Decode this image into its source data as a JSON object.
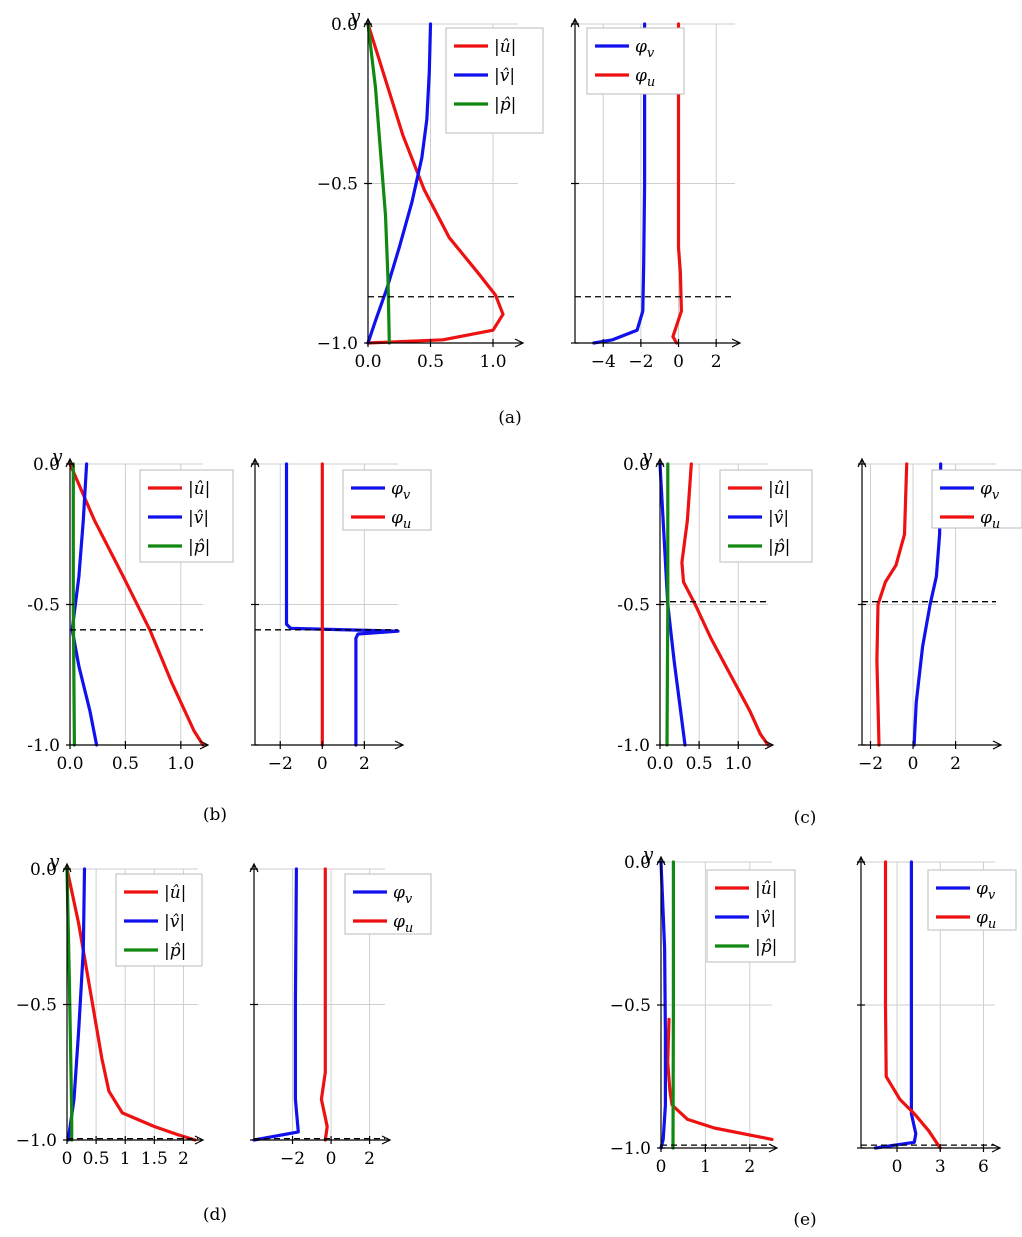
{
  "colors": {
    "u": "#ee1111",
    "v": "#1111ee",
    "p": "#118811"
  },
  "chart_data": [
    {
      "type": "line",
      "panel": "amp",
      "caption": "(a)",
      "ylabel": "y",
      "xlim": [
        0,
        1.2
      ],
      "ylim": [
        -1,
        0
      ],
      "xticks": [
        0,
        0.5,
        1
      ],
      "xticklabels": [
        "0.0",
        "0.5",
        "1.0"
      ],
      "yticks": [
        0,
        -0.5,
        -1
      ],
      "yticklabels": [
        "0.0",
        "−0.5",
        "−1.0"
      ],
      "dashed_y": -0.855,
      "legend": [
        "|û|",
        "|v̂|",
        "|p̂|"
      ],
      "series": [
        {
          "name": "|û|",
          "key": "u",
          "points": [
            [
              0,
              0
            ],
            [
              0.12,
              -0.15
            ],
            [
              0.28,
              -0.35
            ],
            [
              0.45,
              -0.52
            ],
            [
              0.65,
              -0.67
            ],
            [
              0.88,
              -0.78
            ],
            [
              1.02,
              -0.85
            ],
            [
              1.08,
              -0.91
            ],
            [
              1.0,
              -0.96
            ],
            [
              0.6,
              -0.99
            ],
            [
              0,
              -1
            ]
          ]
        },
        {
          "name": "|v̂|",
          "key": "v",
          "points": [
            [
              0.5,
              0
            ],
            [
              0.49,
              -0.15
            ],
            [
              0.47,
              -0.3
            ],
            [
              0.43,
              -0.42
            ],
            [
              0.35,
              -0.56
            ],
            [
              0.25,
              -0.7
            ],
            [
              0.15,
              -0.83
            ],
            [
              0.06,
              -0.93
            ],
            [
              0,
              -1
            ]
          ]
        },
        {
          "name": "|p̂|",
          "key": "p",
          "points": [
            [
              0,
              0
            ],
            [
              0.06,
              -0.2
            ],
            [
              0.1,
              -0.4
            ],
            [
              0.14,
              -0.6
            ],
            [
              0.16,
              -0.8
            ],
            [
              0.17,
              -1
            ]
          ]
        }
      ]
    },
    {
      "type": "line",
      "panel": "phase",
      "xlim": [
        -5.5,
        3
      ],
      "ylim": [
        -1,
        0
      ],
      "xticks": [
        -4,
        -2,
        0,
        2
      ],
      "xticklabels": [
        "−4",
        "−2",
        "0",
        "2"
      ],
      "yticks": [
        0,
        -0.5,
        -1
      ],
      "dashed_y": -0.855,
      "legend": [
        "φv",
        "φu"
      ],
      "series": [
        {
          "name": "φv",
          "key": "v",
          "points": [
            [
              -1.8,
              0
            ],
            [
              -1.8,
              -0.5
            ],
            [
              -1.85,
              -0.75
            ],
            [
              -1.9,
              -0.9
            ],
            [
              -2.2,
              -0.96
            ],
            [
              -3.5,
              -0.99
            ],
            [
              -4.5,
              -1
            ]
          ]
        },
        {
          "name": "φu",
          "key": "u",
          "points": [
            [
              0,
              0
            ],
            [
              0,
              -0.7
            ],
            [
              0.1,
              -0.78
            ],
            [
              0.15,
              -0.9
            ],
            [
              -0.3,
              -0.98
            ],
            [
              -0.1,
              -1
            ]
          ]
        }
      ]
    },
    {
      "type": "line",
      "panel": "amp",
      "caption": "(b)",
      "ylabel": "y",
      "xlim": [
        0,
        1.2
      ],
      "ylim": [
        -1,
        0
      ],
      "xticks": [
        0,
        0.5,
        1
      ],
      "xticklabels": [
        "0.0",
        "0.5",
        "1.0"
      ],
      "yticks": [
        0,
        -0.5,
        -1
      ],
      "yticklabels": [
        "0.0",
        "-0.5",
        "-1.0"
      ],
      "dashed_y": -0.59,
      "legend": [
        "|û|",
        "|v̂|",
        "|p̂|"
      ],
      "series": [
        {
          "name": "|û|",
          "key": "u",
          "points": [
            [
              0,
              0
            ],
            [
              0.22,
              -0.2
            ],
            [
              0.48,
              -0.4
            ],
            [
              0.72,
              -0.59
            ],
            [
              0.92,
              -0.78
            ],
            [
              1.12,
              -0.95
            ],
            [
              1.2,
              -1
            ]
          ]
        },
        {
          "name": "|v̂|",
          "key": "v",
          "points": [
            [
              0.15,
              0
            ],
            [
              0.12,
              -0.2
            ],
            [
              0.08,
              -0.4
            ],
            [
              0.02,
              -0.59
            ],
            [
              0.08,
              -0.72
            ],
            [
              0.18,
              -0.88
            ],
            [
              0.24,
              -1
            ]
          ]
        },
        {
          "name": "|p̂|",
          "key": "p",
          "points": [
            [
              0.03,
              0
            ],
            [
              0.03,
              -0.5
            ],
            [
              0.04,
              -1
            ]
          ]
        }
      ]
    },
    {
      "type": "line",
      "panel": "phase",
      "xlim": [
        -3.2,
        3.6
      ],
      "ylim": [
        -1,
        0
      ],
      "xticks": [
        -2,
        0,
        2
      ],
      "xticklabels": [
        "−2",
        "0",
        "2"
      ],
      "yticks": [
        0,
        -0.5,
        -1
      ],
      "dashed_y": -0.59,
      "legend": [
        "φv",
        "φu"
      ],
      "series": [
        {
          "name": "φv",
          "key": "v",
          "points": [
            [
              -1.7,
              0
            ],
            [
              -1.7,
              -0.57
            ],
            [
              -1.5,
              -0.585
            ],
            [
              3.6,
              -0.595
            ],
            [
              1.7,
              -0.605
            ],
            [
              1.6,
              -0.62
            ],
            [
              1.6,
              -1
            ]
          ]
        },
        {
          "name": "φu",
          "key": "u",
          "points": [
            [
              0,
              0
            ],
            [
              0,
              -0.5
            ],
            [
              0,
              -1
            ]
          ]
        }
      ]
    },
    {
      "type": "line",
      "panel": "amp",
      "caption": "(c)",
      "ylabel": "y",
      "xlim": [
        0,
        1.38
      ],
      "ylim": [
        -1,
        0
      ],
      "xticks": [
        0,
        0.5,
        1
      ],
      "xticklabels": [
        "0.0",
        "0.5",
        "1.0"
      ],
      "yticks": [
        0,
        -0.5,
        -1
      ],
      "yticklabels": [
        "0.0",
        "-0.5",
        "-1.0"
      ],
      "dashed_y": -0.49,
      "legend": [
        "|û|",
        "|v̂|",
        "|p̂|"
      ],
      "series": [
        {
          "name": "|û|",
          "key": "u",
          "points": [
            [
              0.4,
              0
            ],
            [
              0.35,
              -0.2
            ],
            [
              0.28,
              -0.35
            ],
            [
              0.3,
              -0.42
            ],
            [
              0.45,
              -0.5
            ],
            [
              0.65,
              -0.62
            ],
            [
              0.9,
              -0.75
            ],
            [
              1.15,
              -0.88
            ],
            [
              1.28,
              -0.96
            ],
            [
              1.38,
              -1
            ]
          ]
        },
        {
          "name": "|v̂|",
          "key": "v",
          "points": [
            [
              0,
              0
            ],
            [
              0.05,
              -0.25
            ],
            [
              0.1,
              -0.5
            ],
            [
              0.18,
              -0.7
            ],
            [
              0.26,
              -0.87
            ],
            [
              0.32,
              -1
            ]
          ]
        },
        {
          "name": "|p̂|",
          "key": "p",
          "points": [
            [
              0.1,
              0
            ],
            [
              0.1,
              -0.5
            ],
            [
              0.09,
              -1
            ]
          ]
        }
      ]
    },
    {
      "type": "line",
      "panel": "phase",
      "xlim": [
        -2.4,
        3.9
      ],
      "ylim": [
        -1,
        0
      ],
      "xticks": [
        -2,
        0,
        2
      ],
      "xticklabels": [
        "−2",
        "0",
        "2"
      ],
      "yticks": [
        0,
        -0.5,
        -1
      ],
      "dashed_y": -0.49,
      "legend": [
        "φv",
        "φu"
      ],
      "series": [
        {
          "name": "φv",
          "key": "v",
          "points": [
            [
              1.3,
              0
            ],
            [
              1.25,
              -0.25
            ],
            [
              1.1,
              -0.4
            ],
            [
              0.8,
              -0.5
            ],
            [
              0.45,
              -0.65
            ],
            [
              0.15,
              -0.85
            ],
            [
              0.05,
              -1
            ]
          ]
        },
        {
          "name": "φu",
          "key": "u",
          "points": [
            [
              -0.3,
              0
            ],
            [
              -0.4,
              -0.25
            ],
            [
              -0.8,
              -0.36
            ],
            [
              -1.3,
              -0.42
            ],
            [
              -1.65,
              -0.5
            ],
            [
              -1.7,
              -0.7
            ],
            [
              -1.6,
              -1
            ]
          ]
        }
      ]
    },
    {
      "type": "line",
      "panel": "amp",
      "caption": "(d)",
      "ylabel": "y",
      "xlim": [
        0,
        2.25
      ],
      "ylim": [
        -1,
        0
      ],
      "xticks": [
        0,
        0.5,
        1,
        1.5,
        2
      ],
      "xticklabels": [
        "0",
        "0.5",
        "1",
        "1.5",
        "2"
      ],
      "yticks": [
        0,
        -0.5,
        -1
      ],
      "yticklabels": [
        "0.0",
        "−0.5",
        "−1.0"
      ],
      "dashed_y": -0.995,
      "legend": [
        "|û|",
        "|v̂|",
        "|p̂|"
      ],
      "series": [
        {
          "name": "|û|",
          "key": "u",
          "points": [
            [
              0,
              0
            ],
            [
              0.2,
              -0.2
            ],
            [
              0.4,
              -0.45
            ],
            [
              0.6,
              -0.7
            ],
            [
              0.72,
              -0.82
            ],
            [
              0.95,
              -0.9
            ],
            [
              1.5,
              -0.95
            ],
            [
              1.9,
              -0.98
            ],
            [
              2.2,
              -1
            ]
          ]
        },
        {
          "name": "|v̂|",
          "key": "v",
          "points": [
            [
              0.3,
              0
            ],
            [
              0.28,
              -0.3
            ],
            [
              0.2,
              -0.6
            ],
            [
              0.12,
              -0.85
            ],
            [
              0.02,
              -1
            ]
          ]
        },
        {
          "name": "|p̂|",
          "key": "p",
          "points": [
            [
              0,
              0
            ],
            [
              0.04,
              -0.4
            ],
            [
              0.08,
              -0.9
            ],
            [
              0.08,
              -1
            ]
          ]
        }
      ]
    },
    {
      "type": "line",
      "panel": "phase",
      "xlim": [
        -4,
        2.8
      ],
      "ylim": [
        -1,
        0
      ],
      "xticks": [
        -2,
        0,
        2
      ],
      "xticklabels": [
        "−2",
        "0",
        "2"
      ],
      "yticks": [
        0,
        -0.5,
        -1
      ],
      "dashed_y": -0.995,
      "legend": [
        "φv",
        "φu"
      ],
      "series": [
        {
          "name": "φv",
          "key": "v",
          "points": [
            [
              -1.8,
              0
            ],
            [
              -1.85,
              -0.5
            ],
            [
              -1.85,
              -0.85
            ],
            [
              -1.7,
              -0.97
            ],
            [
              -4,
              -1
            ]
          ]
        },
        {
          "name": "φu",
          "key": "u",
          "points": [
            [
              -0.3,
              0
            ],
            [
              -0.3,
              -0.5
            ],
            [
              -0.3,
              -0.75
            ],
            [
              -0.5,
              -0.85
            ],
            [
              -0.2,
              -0.95
            ],
            [
              -0.3,
              -1
            ]
          ]
        }
      ]
    },
    {
      "type": "line",
      "panel": "amp",
      "caption": "(e)",
      "ylabel": "y",
      "xlim": [
        0,
        2.5
      ],
      "ylim": [
        -1,
        0
      ],
      "xticks": [
        0,
        1,
        2
      ],
      "xticklabels": [
        "0",
        "1",
        "2"
      ],
      "yticks": [
        0,
        -0.5,
        -1
      ],
      "yticklabels": [
        "0.0",
        "−0.5",
        "−1.0"
      ],
      "dashed_y": -0.99,
      "legend": [
        "|û|",
        "|v̂|",
        "|p̂|"
      ],
      "series": [
        {
          "name": "|û|",
          "key": "u",
          "points": [
            [
              0.18,
              -0.55
            ],
            [
              0.15,
              -0.7
            ],
            [
              0.2,
              -0.8
            ],
            [
              0.25,
              -0.85
            ],
            [
              0.6,
              -0.9
            ],
            [
              1.2,
              -0.93
            ],
            [
              2.5,
              -0.97
            ]
          ]
        },
        {
          "name": "|v̂|",
          "key": "v",
          "points": [
            [
              0,
              0
            ],
            [
              0.08,
              -0.3
            ],
            [
              0.1,
              -0.6
            ],
            [
              0.1,
              -0.85
            ],
            [
              0.05,
              -0.97
            ],
            [
              0,
              -1
            ]
          ]
        },
        {
          "name": "|p̂|",
          "key": "p",
          "points": [
            [
              0.28,
              0
            ],
            [
              0.28,
              -0.5
            ],
            [
              0.27,
              -1
            ]
          ]
        }
      ]
    },
    {
      "type": "line",
      "panel": "phase",
      "xlim": [
        -2.5,
        6.8
      ],
      "ylim": [
        -1,
        0
      ],
      "xticks": [
        0,
        3,
        6
      ],
      "xticklabels": [
        "0",
        "3",
        "6"
      ],
      "yticks": [
        0,
        -0.5,
        -1
      ],
      "dashed_y": -0.99,
      "legend": [
        "φv",
        "φu"
      ],
      "series": [
        {
          "name": "φv",
          "key": "v",
          "points": [
            [
              1,
              0
            ],
            [
              1,
              -0.5
            ],
            [
              1,
              -0.88
            ],
            [
              1.3,
              -0.95
            ],
            [
              1.2,
              -0.98
            ],
            [
              -1.5,
              -1
            ]
          ]
        },
        {
          "name": "φu",
          "key": "u",
          "points": [
            [
              -0.8,
              0
            ],
            [
              -0.8,
              -0.5
            ],
            [
              -0.75,
              -0.75
            ],
            [
              0.2,
              -0.83
            ],
            [
              1.2,
              -0.88
            ],
            [
              2.2,
              -0.94
            ],
            [
              3,
              -1
            ]
          ]
        }
      ]
    }
  ]
}
